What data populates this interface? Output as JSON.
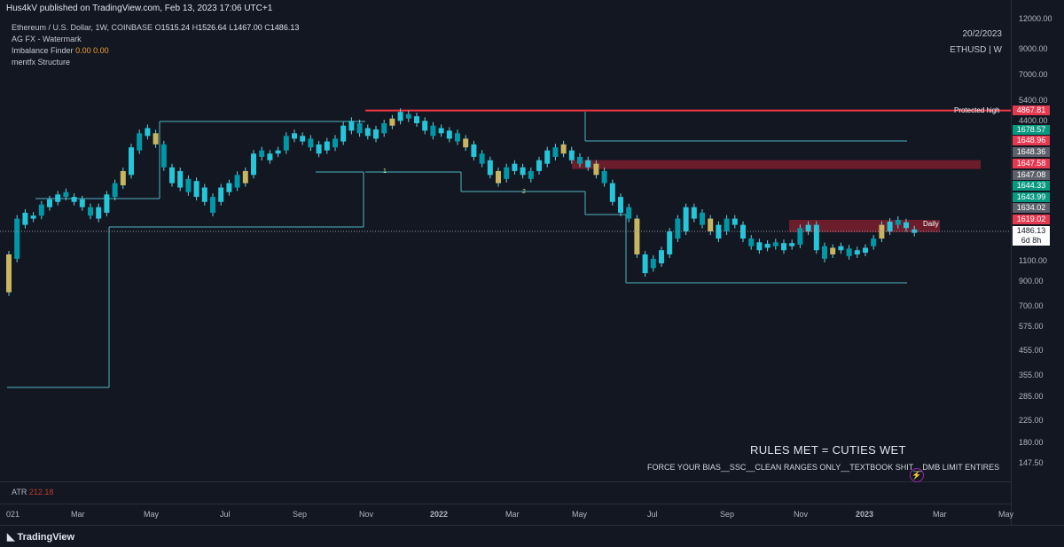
{
  "topbar": {
    "text": "Hus4kV published on TradingView.com, Feb 13, 2023 17:06 UTC+1"
  },
  "legend": {
    "symbol": "Ethereum / U.S. Dollar, 1W, COINBASE",
    "o_label": "O",
    "o": "1515.24",
    "h_label": "H",
    "h": "1526.64",
    "l_label": "L",
    "l": "1467.00",
    "c_label": "C",
    "c": "1486.13",
    "ind1": "AG FX - Watermark",
    "ind2": "Imbalance Finder",
    "ind2_v1": "0.00",
    "ind2_v2": "0.00",
    "ind3": "mentfx Structure"
  },
  "watermark": {
    "date": "20/2/2023",
    "ticker": "ETHUSD | W"
  },
  "labels": {
    "protected_high": "Protected high",
    "daily": "Daily",
    "one": "1",
    "two": "2"
  },
  "price_axis": {
    "ticks": [
      "12000.00",
      "9000.00",
      "7000.00",
      "5400.00",
      "4400.00",
      "1100.00",
      "900.00",
      "700.00",
      "575.00",
      "455.00",
      "355.00",
      "285.00",
      "225.00",
      "180.00",
      "147.50"
    ],
    "tags": [
      {
        "text": "4867.81",
        "color": "#e53950"
      },
      {
        "text": "1678.57",
        "color": "#089981"
      },
      {
        "text": "1648.96",
        "color": "#e53950"
      },
      {
        "text": "1648.36",
        "color": "#5d606b"
      },
      {
        "text": "1647.58",
        "color": "#e53950"
      },
      {
        "text": "1647.08",
        "color": "#5d606b"
      },
      {
        "text": "1644.33",
        "color": "#089981"
      },
      {
        "text": "1643.99",
        "color": "#089981"
      },
      {
        "text": "1634.02",
        "color": "#5d606b"
      },
      {
        "text": "1619.02",
        "color": "#e53950"
      }
    ],
    "current": {
      "price": "1486.13",
      "countdown": "6d 8h"
    }
  },
  "time_axis": {
    "ticks": [
      "021",
      "Mar",
      "May",
      "Jul",
      "Sep",
      "Nov",
      "2022",
      "Mar",
      "May",
      "Jul",
      "Sep",
      "Nov",
      "2023",
      "Mar",
      "May"
    ]
  },
  "atr": {
    "label": "ATR",
    "value": "212.18"
  },
  "notes": {
    "rules": "RULES MET = CUTIES WET",
    "force": "FORCE YOUR BIAS__SSC__CLEAN RANGES ONLY__TEXTBOOK SHIT__DMB LIMIT ENTIRES"
  },
  "footer": {
    "brand": "TradingView"
  },
  "colors": {
    "bull": "#26c6da",
    "bear": "#0097a7",
    "imbalance": "#c8b560",
    "protected": "#f23645",
    "zone": "#7b1f2e",
    "structure": "#4fb6c2"
  },
  "chart_data": {
    "type": "candlestick",
    "title": "Ethereum / U.S. Dollar, 1W, COINBASE",
    "y_scale": "log",
    "x_range": [
      "2021-01",
      "2023-05"
    ],
    "y_range": [
      147.5,
      12000
    ],
    "series": [
      {
        "values": [
          [
            830,
            1200
          ],
          [
            1150,
            1700
          ],
          [
            1600,
            1800
          ],
          [
            1700,
            1750
          ],
          [
            1750,
            1950
          ],
          [
            1900,
            2050
          ],
          [
            2000,
            2150
          ],
          [
            2100,
            2200
          ],
          [
            2000,
            2100
          ],
          [
            1900,
            2050
          ],
          [
            1750,
            1900
          ],
          [
            1700,
            1900
          ],
          [
            1800,
            2150
          ],
          [
            2100,
            2400
          ],
          [
            2350,
            2700
          ],
          [
            2600,
            3400
          ],
          [
            3300,
            3900
          ],
          [
            3800,
            4100
          ],
          [
            3500,
            3900
          ],
          [
            2800,
            3500
          ],
          [
            2400,
            2800
          ],
          [
            2300,
            2700
          ],
          [
            2200,
            2500
          ],
          [
            2100,
            2450
          ],
          [
            2000,
            2300
          ],
          [
            1800,
            2100
          ],
          [
            2000,
            2300
          ],
          [
            2200,
            2400
          ],
          [
            2300,
            2600
          ],
          [
            2400,
            2700
          ],
          [
            2600,
            3200
          ],
          [
            3100,
            3300
          ],
          [
            3000,
            3200
          ],
          [
            3200,
            3300
          ],
          [
            3300,
            3800
          ],
          [
            3700,
            3900
          ],
          [
            3600,
            3800
          ],
          [
            3400,
            3700
          ],
          [
            3200,
            3500
          ],
          [
            3300,
            3600
          ],
          [
            3400,
            3700
          ],
          [
            3600,
            4200
          ],
          [
            4000,
            4400
          ],
          [
            3900,
            4300
          ],
          [
            3800,
            4100
          ],
          [
            3700,
            4050
          ],
          [
            3900,
            4300
          ],
          [
            4200,
            4500
          ],
          [
            4400,
            4800
          ],
          [
            4500,
            4700
          ],
          [
            4300,
            4600
          ],
          [
            4000,
            4400
          ],
          [
            3800,
            4200
          ],
          [
            3900,
            4100
          ],
          [
            3700,
            4000
          ],
          [
            3600,
            3900
          ],
          [
            3400,
            3700
          ],
          [
            3100,
            3500
          ],
          [
            2900,
            3200
          ],
          [
            2600,
            3000
          ],
          [
            2400,
            2700
          ],
          [
            2500,
            2800
          ],
          [
            2700,
            2900
          ],
          [
            2600,
            2800
          ],
          [
            2500,
            2700
          ],
          [
            2700,
            3000
          ],
          [
            2900,
            3300
          ],
          [
            3100,
            3400
          ],
          [
            3200,
            3500
          ],
          [
            3000,
            3300
          ],
          [
            2900,
            3100
          ],
          [
            2800,
            3000
          ],
          [
            2600,
            2900
          ],
          [
            2400,
            2700
          ],
          [
            2000,
            2400
          ],
          [
            1800,
            2100
          ],
          [
            1700,
            1900
          ],
          [
            1200,
            1700
          ],
          [
            1000,
            1200
          ],
          [
            1050,
            1150
          ],
          [
            1100,
            1250
          ],
          [
            1200,
            1500
          ],
          [
            1400,
            1700
          ],
          [
            1500,
            1900
          ],
          [
            1700,
            1900
          ],
          [
            1600,
            1800
          ],
          [
            1500,
            1700
          ],
          [
            1400,
            1600
          ],
          [
            1500,
            1700
          ],
          [
            1600,
            1700
          ],
          [
            1400,
            1600
          ],
          [
            1300,
            1400
          ],
          [
            1250,
            1350
          ],
          [
            1280,
            1330
          ],
          [
            1300,
            1350
          ],
          [
            1250,
            1340
          ],
          [
            1300,
            1340
          ],
          [
            1320,
            1550
          ],
          [
            1500,
            1600
          ],
          [
            1250,
            1600
          ],
          [
            1150,
            1300
          ],
          [
            1200,
            1280
          ],
          [
            1250,
            1300
          ],
          [
            1180,
            1270
          ],
          [
            1200,
            1250
          ],
          [
            1220,
            1280
          ],
          [
            1300,
            1400
          ],
          [
            1400,
            1600
          ],
          [
            1500,
            1650
          ],
          [
            1600,
            1680
          ],
          [
            1550,
            1640
          ],
          [
            1480,
            1530
          ]
        ]
      }
    ],
    "levels": [
      {
        "name": "Protected high",
        "value": 4867.81
      },
      {
        "name": "Daily",
        "range": [
          1600,
          1680
        ]
      }
    ]
  }
}
